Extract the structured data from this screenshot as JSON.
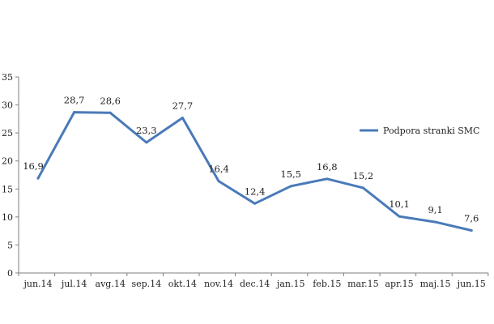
{
  "chart_data": {
    "type": "line",
    "title": "",
    "xlabel": "",
    "ylabel": "",
    "categories": [
      "jun.14",
      "jul.14",
      "avg.14",
      "sep.14",
      "okt.14",
      "nov.14",
      "dec.14",
      "jan.15",
      "feb.15",
      "mar.15",
      "apr.15",
      "maj.15",
      "jun.15"
    ],
    "series": [
      {
        "name": "Podpora stranki SMC",
        "values": [
          16.9,
          28.7,
          28.6,
          23.3,
          27.7,
          16.4,
          12.4,
          15.5,
          16.8,
          15.2,
          10.1,
          9.1,
          7.6
        ],
        "value_labels": [
          "16,9",
          "28,7",
          "28,6",
          "23,3",
          "27,7",
          "16,4",
          "12,4",
          "15,5",
          "16,8",
          "15,2",
          "10,1",
          "9,1",
          "7,6"
        ],
        "color": "#4a7ab8"
      }
    ],
    "ylim": [
      0,
      35
    ],
    "yticks": [
      0,
      5,
      10,
      15,
      20,
      25,
      30,
      35
    ],
    "grid": false,
    "legend_position": "right"
  }
}
